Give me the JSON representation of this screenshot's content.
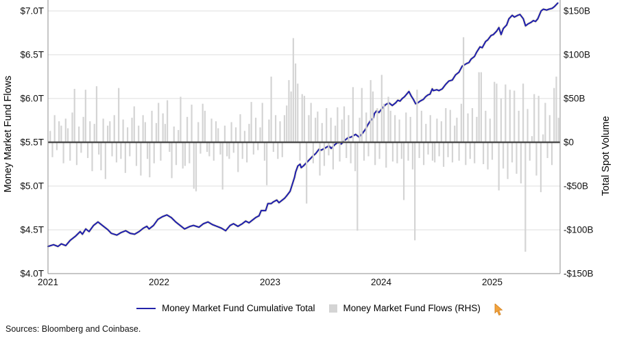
{
  "footer": {
    "sources": "Sources: Bloomberg and Coinbase."
  },
  "legend": {
    "items": [
      {
        "label": "Money Market Fund Cumulative Total",
        "swatch": "line",
        "color": "#2323aa"
      },
      {
        "label": "Money Market Fund Flows (RHS)",
        "swatch": "square",
        "color": "#d4d4d4"
      }
    ]
  },
  "cursor_color": "#f2a33c",
  "chart_data": {
    "type": "line+bar",
    "title": "",
    "grid": "on",
    "legend_position": "bottom-center",
    "left_axis": {
      "label": "Money Market Fund Flows",
      "units": "trillions USD",
      "range": [
        4.0,
        7.16
      ],
      "ticks": [
        {
          "label": "$7.0T",
          "value": 7.0
        },
        {
          "label": "$6.5T",
          "value": 6.5
        },
        {
          "label": "$6.0T",
          "value": 6.0
        },
        {
          "label": "$5.5T",
          "value": 5.5
        },
        {
          "label": "$5.0T",
          "value": 5.0
        },
        {
          "label": "$4.5T",
          "value": 4.5
        },
        {
          "label": "$4.0T",
          "value": 4.0
        }
      ]
    },
    "right_axis": {
      "label": "Total Spot Volume",
      "units": "billions USD",
      "range": [
        -150,
        162
      ],
      "ticks": [
        {
          "label": "$150B",
          "value": 150
        },
        {
          "label": "$100B",
          "value": 100
        },
        {
          "label": "$50B",
          "value": 50
        },
        {
          "label": "$0",
          "value": 0
        },
        {
          "label": "-$50B",
          "value": -50
        },
        {
          "label": "-$100B",
          "value": -100
        },
        {
          "label": "-$150B",
          "value": -150
        }
      ]
    },
    "x_axis": {
      "range": [
        2021.0,
        2025.61
      ],
      "ticks": [
        {
          "label": "2021",
          "value": 2021
        },
        {
          "label": "2022",
          "value": 2022
        },
        {
          "label": "2023",
          "value": 2023
        },
        {
          "label": "2024",
          "value": 2024
        },
        {
          "label": "2025",
          "value": 2025
        }
      ]
    },
    "series": [
      {
        "name": "Money Market Fund Cumulative Total",
        "type": "line",
        "axis": "left",
        "color": "#2323aa",
        "points": [
          [
            2021.0,
            4.31
          ],
          [
            2021.05,
            4.33
          ],
          [
            2021.09,
            4.31
          ],
          [
            2021.12,
            4.34
          ],
          [
            2021.16,
            4.32
          ],
          [
            2021.2,
            4.38
          ],
          [
            2021.25,
            4.43
          ],
          [
            2021.29,
            4.48
          ],
          [
            2021.31,
            4.45
          ],
          [
            2021.34,
            4.51
          ],
          [
            2021.37,
            4.48
          ],
          [
            2021.41,
            4.55
          ],
          [
            2021.45,
            4.59
          ],
          [
            2021.49,
            4.55
          ],
          [
            2021.54,
            4.5
          ],
          [
            2021.57,
            4.46
          ],
          [
            2021.62,
            4.44
          ],
          [
            2021.66,
            4.47
          ],
          [
            2021.7,
            4.49
          ],
          [
            2021.74,
            4.46
          ],
          [
            2021.78,
            4.45
          ],
          [
            2021.82,
            4.48
          ],
          [
            2021.86,
            4.52
          ],
          [
            2021.89,
            4.54
          ],
          [
            2021.91,
            4.51
          ],
          [
            2021.95,
            4.55
          ],
          [
            2021.99,
            4.62
          ],
          [
            2022.03,
            4.65
          ],
          [
            2022.07,
            4.67
          ],
          [
            2022.11,
            4.64
          ],
          [
            2022.15,
            4.59
          ],
          [
            2022.19,
            4.55
          ],
          [
            2022.23,
            4.51
          ],
          [
            2022.28,
            4.54
          ],
          [
            2022.31,
            4.55
          ],
          [
            2022.36,
            4.53
          ],
          [
            2022.4,
            4.57
          ],
          [
            2022.44,
            4.59
          ],
          [
            2022.48,
            4.56
          ],
          [
            2022.52,
            4.54
          ],
          [
            2022.56,
            4.52
          ],
          [
            2022.6,
            4.49
          ],
          [
            2022.64,
            4.55
          ],
          [
            2022.67,
            4.57
          ],
          [
            2022.71,
            4.54
          ],
          [
            2022.75,
            4.57
          ],
          [
            2022.78,
            4.6
          ],
          [
            2022.81,
            4.58
          ],
          [
            2022.84,
            4.61
          ],
          [
            2022.87,
            4.64
          ],
          [
            2022.9,
            4.66
          ],
          [
            2022.92,
            4.72
          ],
          [
            2022.96,
            4.72
          ],
          [
            2022.98,
            4.8
          ],
          [
            2023.01,
            4.8
          ],
          [
            2023.03,
            4.82
          ],
          [
            2023.06,
            4.84
          ],
          [
            2023.08,
            4.81
          ],
          [
            2023.1,
            4.83
          ],
          [
            2023.13,
            4.86
          ],
          [
            2023.15,
            4.89
          ],
          [
            2023.18,
            4.94
          ],
          [
            2023.2,
            5.02
          ],
          [
            2023.22,
            5.1
          ],
          [
            2023.23,
            5.16
          ],
          [
            2023.25,
            5.23
          ],
          [
            2023.27,
            5.25
          ],
          [
            2023.28,
            5.21
          ],
          [
            2023.3,
            5.23
          ],
          [
            2023.33,
            5.27
          ],
          [
            2023.36,
            5.31
          ],
          [
            2023.39,
            5.35
          ],
          [
            2023.41,
            5.37
          ],
          [
            2023.44,
            5.42
          ],
          [
            2023.46,
            5.41
          ],
          [
            2023.49,
            5.43
          ],
          [
            2023.53,
            5.46
          ],
          [
            2023.55,
            5.43
          ],
          [
            2023.58,
            5.47
          ],
          [
            2023.61,
            5.5
          ],
          [
            2023.64,
            5.48
          ],
          [
            2023.67,
            5.52
          ],
          [
            2023.7,
            5.55
          ],
          [
            2023.73,
            5.56
          ],
          [
            2023.77,
            5.59
          ],
          [
            2023.8,
            5.56
          ],
          [
            2023.83,
            5.6
          ],
          [
            2023.86,
            5.65
          ],
          [
            2023.88,
            5.7
          ],
          [
            2023.9,
            5.74
          ],
          [
            2023.93,
            5.78
          ],
          [
            2023.94,
            5.83
          ],
          [
            2023.96,
            5.86
          ],
          [
            2023.98,
            5.84
          ],
          [
            2024.01,
            5.89
          ],
          [
            2024.04,
            5.93
          ],
          [
            2024.07,
            5.95
          ],
          [
            2024.1,
            5.92
          ],
          [
            2024.13,
            5.95
          ],
          [
            2024.15,
            5.98
          ],
          [
            2024.17,
            5.97
          ],
          [
            2024.19,
            6.0
          ],
          [
            2024.21,
            6.02
          ],
          [
            2024.23,
            6.05
          ],
          [
            2024.25,
            6.08
          ],
          [
            2024.27,
            6.03
          ],
          [
            2024.29,
            5.99
          ],
          [
            2024.31,
            5.94
          ],
          [
            2024.33,
            5.95
          ],
          [
            2024.35,
            5.97
          ],
          [
            2024.38,
            5.99
          ],
          [
            2024.4,
            6.02
          ],
          [
            2024.42,
            6.04
          ],
          [
            2024.44,
            6.05
          ],
          [
            2024.46,
            6.11
          ],
          [
            2024.47,
            6.09
          ],
          [
            2024.5,
            6.1
          ],
          [
            2024.52,
            6.09
          ],
          [
            2024.55,
            6.11
          ],
          [
            2024.58,
            6.16
          ],
          [
            2024.61,
            6.2
          ],
          [
            2024.64,
            6.21
          ],
          [
            2024.67,
            6.27
          ],
          [
            2024.7,
            6.3
          ],
          [
            2024.73,
            6.37
          ],
          [
            2024.77,
            6.4
          ],
          [
            2024.79,
            6.41
          ],
          [
            2024.81,
            6.45
          ],
          [
            2024.84,
            6.48
          ],
          [
            2024.86,
            6.53
          ],
          [
            2024.89,
            6.59
          ],
          [
            2024.91,
            6.58
          ],
          [
            2024.94,
            6.65
          ],
          [
            2024.96,
            6.67
          ],
          [
            2024.99,
            6.72
          ],
          [
            2025.01,
            6.73
          ],
          [
            2025.04,
            6.77
          ],
          [
            2025.06,
            6.81
          ],
          [
            2025.08,
            6.73
          ],
          [
            2025.1,
            6.8
          ],
          [
            2025.13,
            6.84
          ],
          [
            2025.15,
            6.91
          ],
          [
            2025.18,
            6.95
          ],
          [
            2025.2,
            6.93
          ],
          [
            2025.23,
            6.95
          ],
          [
            2025.25,
            6.96
          ],
          [
            2025.28,
            6.91
          ],
          [
            2025.3,
            6.83
          ],
          [
            2025.32,
            6.85
          ],
          [
            2025.35,
            6.87
          ],
          [
            2025.37,
            6.89
          ],
          [
            2025.39,
            6.88
          ],
          [
            2025.41,
            6.91
          ],
          [
            2025.44,
            7.0
          ],
          [
            2025.46,
            7.02
          ],
          [
            2025.49,
            7.01
          ],
          [
            2025.51,
            7.02
          ],
          [
            2025.54,
            7.03
          ],
          [
            2025.56,
            7.05
          ],
          [
            2025.59,
            7.09
          ]
        ]
      },
      {
        "name": "Money Market Fund Flows (RHS)",
        "type": "bar",
        "axis": "right",
        "color": "#d4d4d4",
        "start": 2021.02,
        "interval": 0.0199,
        "values": [
          13,
          -17,
          31,
          -9,
          24,
          19,
          -24,
          27,
          16,
          -21,
          34,
          61,
          -26,
          18,
          -12,
          29,
          60,
          -18,
          24,
          -33,
          21,
          64,
          -14,
          -32,
          27,
          -42,
          19,
          24,
          -16,
          31,
          -23,
          62,
          -19,
          26,
          -35,
          17,
          -16,
          28,
          41,
          -27,
          19,
          -38,
          31,
          23,
          -19,
          -40,
          36,
          -24,
          22,
          45,
          -21,
          33,
          21,
          48,
          -11,
          -41,
          18,
          -26,
          14,
          52,
          -30,
          -27,
          29,
          -24,
          43,
          -53,
          -56,
          23,
          -13,
          44,
          36,
          -11,
          -16,
          27,
          -21,
          24,
          16,
          -14,
          -54,
          19,
          -16,
          -19,
          23,
          -12,
          17,
          -34,
          32,
          -19,
          13,
          -23,
          21,
          46,
          -14,
          28,
          -9,
          17,
          45,
          -21,
          -49,
          26,
          75,
          -11,
          31,
          -19,
          24,
          -17,
          31,
          42,
          71,
          58,
          119,
          90,
          67,
          -21,
          55,
          53,
          -70,
          31,
          45,
          -24,
          28,
          35,
          -38,
          22,
          -27,
          39,
          -15,
          28,
          -31,
          19,
          40,
          -22,
          26,
          41,
          -18,
          31,
          -24,
          63,
          -33,
          -101,
          28,
          62,
          -21,
          34,
          -16,
          71,
          58,
          -26,
          39,
          -19,
          77,
          44,
          -29,
          52,
          36,
          -22,
          31,
          -24,
          26,
          -19,
          -66,
          34,
          -21,
          29,
          -31,
          -112,
          60,
          -18,
          36,
          -26,
          21,
          -14,
          31,
          -21,
          -23,
          27,
          -16,
          24,
          -28,
          39,
          -17,
          37,
          -23,
          19,
          28,
          -21,
          44,
          120,
          -26,
          33,
          -19,
          39,
          -24,
          29,
          80,
          80,
          -25,
          36,
          -31,
          27,
          -20,
          69,
          67,
          -55,
          50,
          -30,
          66,
          -42,
          60,
          -23,
          59,
          -36,
          36,
          -47,
          67,
          -125,
          38,
          -21,
          7,
          55,
          -38,
          53,
          -57,
          9,
          45,
          -18,
          31,
          -26,
          62,
          75,
          28
        ]
      }
    ]
  }
}
